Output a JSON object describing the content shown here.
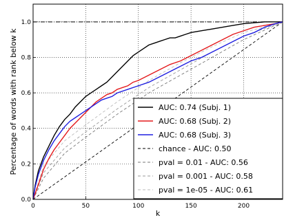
{
  "chart_data": {
    "type": "line",
    "title": "",
    "xlabel": "k",
    "ylabel": "Percentage of words with rank below k",
    "xlim": [
      0,
      237
    ],
    "ylim": [
      0,
      1.1
    ],
    "x_ticks": [
      0,
      50,
      100,
      150,
      200
    ],
    "y_ticks": [
      0.0,
      0.2,
      0.4,
      0.6,
      0.8,
      1.0
    ],
    "x_tick_labels": [
      "0",
      "50",
      "100",
      "150",
      "200"
    ],
    "y_tick_labels": [
      "0.0",
      "0.2",
      "0.4",
      "0.6",
      "0.8",
      "1.0"
    ],
    "grid": true,
    "reference_line_y": 1.0,
    "legend_position": "lower-right",
    "series": [
      {
        "name": "AUC: 0.74 (Subj. 1)",
        "color": "#000000",
        "style": "solid",
        "points": [
          [
            0,
            0
          ],
          [
            2,
            0.08
          ],
          [
            5,
            0.16
          ],
          [
            10,
            0.24
          ],
          [
            15,
            0.3
          ],
          [
            20,
            0.36
          ],
          [
            25,
            0.41
          ],
          [
            30,
            0.45
          ],
          [
            35,
            0.48
          ],
          [
            40,
            0.52
          ],
          [
            45,
            0.55
          ],
          [
            50,
            0.58
          ],
          [
            55,
            0.6
          ],
          [
            60,
            0.62
          ],
          [
            65,
            0.64
          ],
          [
            70,
            0.66
          ],
          [
            75,
            0.69
          ],
          [
            80,
            0.72
          ],
          [
            85,
            0.75
          ],
          [
            90,
            0.78
          ],
          [
            95,
            0.81
          ],
          [
            100,
            0.83
          ],
          [
            105,
            0.85
          ],
          [
            110,
            0.87
          ],
          [
            115,
            0.88
          ],
          [
            120,
            0.89
          ],
          [
            125,
            0.9
          ],
          [
            130,
            0.91
          ],
          [
            135,
            0.91
          ],
          [
            140,
            0.92
          ],
          [
            145,
            0.93
          ],
          [
            150,
            0.94
          ],
          [
            160,
            0.95
          ],
          [
            170,
            0.96
          ],
          [
            180,
            0.97
          ],
          [
            190,
            0.98
          ],
          [
            200,
            0.99
          ],
          [
            210,
            0.995
          ],
          [
            220,
            1.0
          ],
          [
            237,
            1.0
          ]
        ]
      },
      {
        "name": "AUC: 0.68 (Subj. 2)",
        "color": "#e41a1c",
        "style": "solid",
        "points": [
          [
            0,
            0
          ],
          [
            3,
            0.05
          ],
          [
            6,
            0.1
          ],
          [
            10,
            0.17
          ],
          [
            15,
            0.23
          ],
          [
            20,
            0.28
          ],
          [
            25,
            0.32
          ],
          [
            30,
            0.36
          ],
          [
            35,
            0.4
          ],
          [
            40,
            0.43
          ],
          [
            45,
            0.46
          ],
          [
            50,
            0.49
          ],
          [
            55,
            0.52
          ],
          [
            60,
            0.55
          ],
          [
            65,
            0.57
          ],
          [
            70,
            0.59
          ],
          [
            75,
            0.6
          ],
          [
            80,
            0.62
          ],
          [
            85,
            0.63
          ],
          [
            90,
            0.64
          ],
          [
            95,
            0.66
          ],
          [
            100,
            0.67
          ],
          [
            110,
            0.7
          ],
          [
            120,
            0.73
          ],
          [
            130,
            0.76
          ],
          [
            140,
            0.78
          ],
          [
            150,
            0.81
          ],
          [
            160,
            0.84
          ],
          [
            170,
            0.87
          ],
          [
            180,
            0.9
          ],
          [
            190,
            0.93
          ],
          [
            200,
            0.95
          ],
          [
            210,
            0.97
          ],
          [
            220,
            0.98
          ],
          [
            230,
            0.99
          ],
          [
            237,
            1.0
          ]
        ]
      },
      {
        "name": "AUC: 0.68 (Subj. 3)",
        "color": "#1f1fe0",
        "style": "solid",
        "points": [
          [
            0,
            0
          ],
          [
            2,
            0.07
          ],
          [
            5,
            0.14
          ],
          [
            10,
            0.22
          ],
          [
            15,
            0.28
          ],
          [
            20,
            0.33
          ],
          [
            25,
            0.37
          ],
          [
            30,
            0.41
          ],
          [
            35,
            0.44
          ],
          [
            40,
            0.46
          ],
          [
            45,
            0.48
          ],
          [
            50,
            0.5
          ],
          [
            55,
            0.52
          ],
          [
            60,
            0.54
          ],
          [
            65,
            0.56
          ],
          [
            70,
            0.57
          ],
          [
            75,
            0.58
          ],
          [
            80,
            0.6
          ],
          [
            90,
            0.62
          ],
          [
            100,
            0.64
          ],
          [
            110,
            0.66
          ],
          [
            120,
            0.69
          ],
          [
            130,
            0.72
          ],
          [
            140,
            0.75
          ],
          [
            150,
            0.78
          ],
          [
            160,
            0.8
          ],
          [
            170,
            0.83
          ],
          [
            180,
            0.86
          ],
          [
            190,
            0.89
          ],
          [
            200,
            0.92
          ],
          [
            210,
            0.94
          ],
          [
            220,
            0.97
          ],
          [
            230,
            0.99
          ],
          [
            237,
            1.0
          ]
        ]
      },
      {
        "name": "chance - AUC: 0.50",
        "color": "#000000",
        "style": "dashed",
        "points": [
          [
            0,
            0
          ],
          [
            237,
            1.0
          ]
        ]
      },
      {
        "name": "pval = 0.01 - AUC: 0.56",
        "color": "#777777",
        "style": "dashed",
        "points": [
          [
            0,
            0
          ],
          [
            10,
            0.12
          ],
          [
            30,
            0.26
          ],
          [
            50,
            0.35
          ],
          [
            80,
            0.48
          ],
          [
            110,
            0.6
          ],
          [
            140,
            0.7
          ],
          [
            170,
            0.8
          ],
          [
            200,
            0.9
          ],
          [
            237,
            1.0
          ]
        ]
      },
      {
        "name": "pval = 0.001 - AUC: 0.58",
        "color": "#999999",
        "style": "dashed",
        "points": [
          [
            0,
            0
          ],
          [
            10,
            0.15
          ],
          [
            30,
            0.29
          ],
          [
            50,
            0.38
          ],
          [
            80,
            0.51
          ],
          [
            110,
            0.63
          ],
          [
            140,
            0.73
          ],
          [
            170,
            0.83
          ],
          [
            200,
            0.92
          ],
          [
            237,
            1.0
          ]
        ]
      },
      {
        "name": "pval = 1e-05 - AUC: 0.61",
        "color": "#bbbbbb",
        "style": "dashed",
        "points": [
          [
            0,
            0
          ],
          [
            10,
            0.19
          ],
          [
            30,
            0.33
          ],
          [
            50,
            0.42
          ],
          [
            80,
            0.55
          ],
          [
            110,
            0.67
          ],
          [
            140,
            0.77
          ],
          [
            170,
            0.86
          ],
          [
            200,
            0.94
          ],
          [
            237,
            1.0
          ]
        ]
      }
    ]
  }
}
